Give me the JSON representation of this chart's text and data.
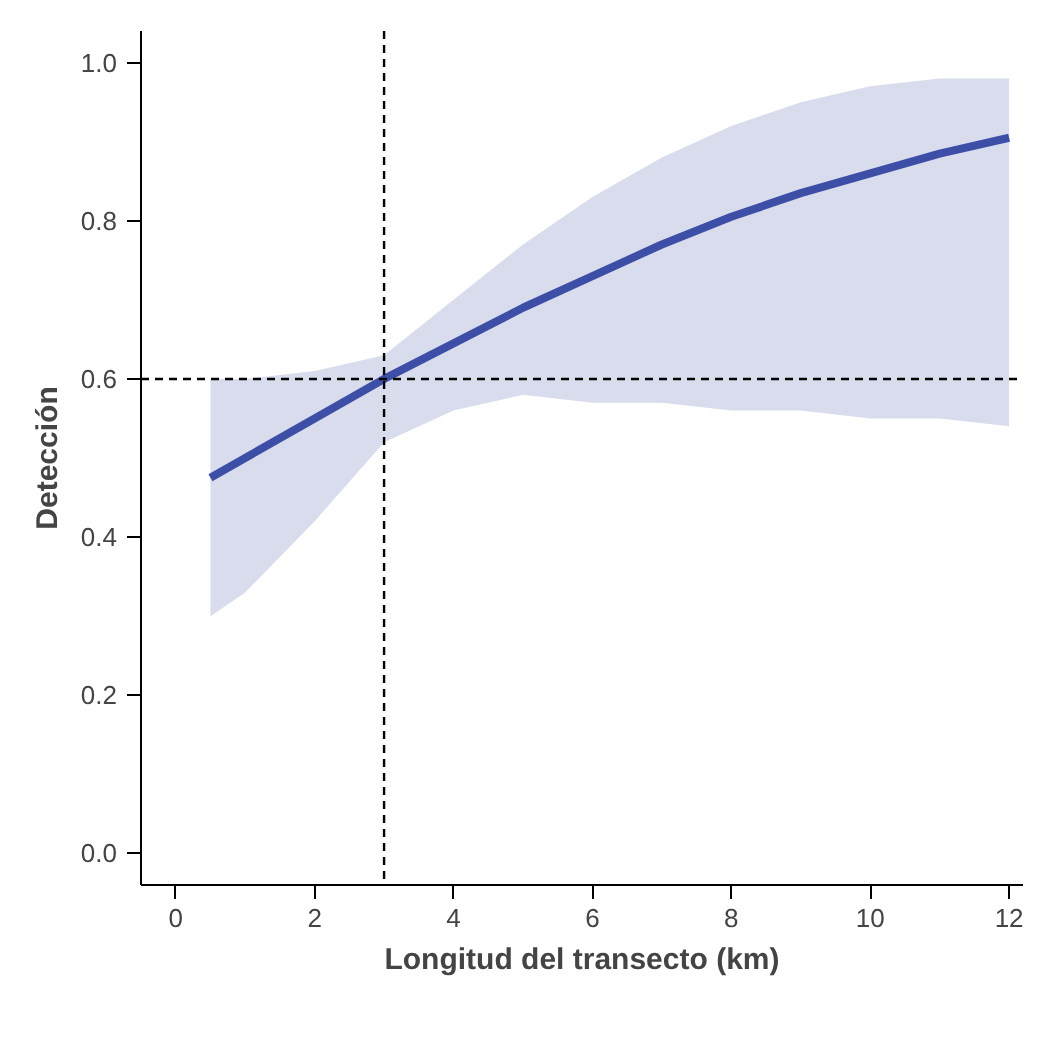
{
  "chart_data": {
    "type": "line",
    "xlabel": "Longitud del transecto (km)",
    "ylabel": "Detección",
    "x": [
      0.5,
      1,
      2,
      3,
      4,
      5,
      6,
      7,
      8,
      9,
      10,
      11,
      12
    ],
    "series": [
      {
        "color": "#3d4ea6",
        "values": [
          0.475,
          0.5,
          0.55,
          0.6,
          0.645,
          0.69,
          0.73,
          0.77,
          0.805,
          0.835,
          0.86,
          0.885,
          0.905
        ],
        "lower": [
          0.3,
          0.33,
          0.42,
          0.52,
          0.56,
          0.58,
          0.57,
          0.57,
          0.56,
          0.56,
          0.55,
          0.55,
          0.54
        ],
        "upper": [
          0.6,
          0.6,
          0.61,
          0.63,
          0.7,
          0.77,
          0.83,
          0.88,
          0.92,
          0.95,
          0.97,
          0.98,
          0.98
        ]
      }
    ],
    "xlim": [
      -0.5,
      12.2
    ],
    "ylim": [
      -0.04,
      1.04
    ],
    "xticks": [
      0,
      2,
      4,
      6,
      8,
      10,
      12
    ],
    "yticks": [
      {
        "value": 0,
        "label": "0.0"
      },
      {
        "value": 0.2,
        "label": "0.2"
      },
      {
        "value": 0.4,
        "label": "0.4"
      },
      {
        "value": 0.6,
        "label": "0.6"
      },
      {
        "value": 0.8,
        "label": "0.8"
      },
      {
        "value": 1,
        "label": "1.0"
      }
    ],
    "ref_lines": [
      {
        "axis": "x",
        "value": 3,
        "line_style": "dashed",
        "color": "#000000"
      },
      {
        "axis": "y",
        "value": 0.6,
        "line_style": "dashed",
        "color": "#000000"
      }
    ],
    "grid": false,
    "line_style": "solid",
    "marker": "none"
  }
}
